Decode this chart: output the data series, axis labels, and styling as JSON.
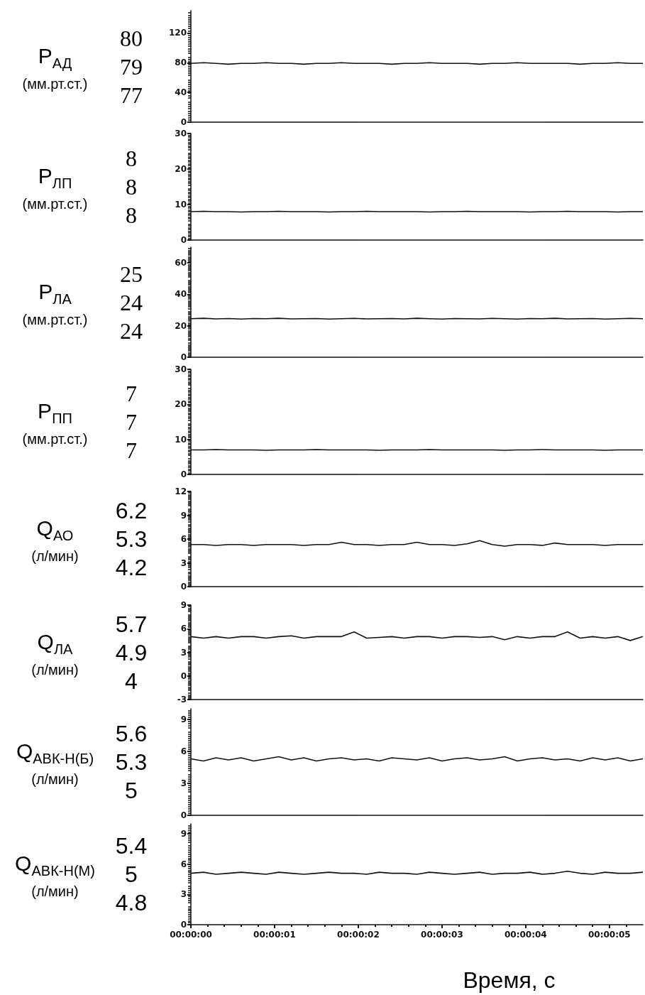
{
  "chart_data": [
    {
      "type": "line",
      "ylabel": "P$_{АД}$\n(мм.рт.ст.)",
      "annotations": [
        "80",
        "79",
        "77"
      ],
      "xlim": [
        0,
        5.4
      ],
      "ylim": [
        0,
        150
      ],
      "yticks": [
        0,
        40,
        80,
        120
      ],
      "tick_labels": "y",
      "marker": "none",
      "x": [
        0,
        0.15,
        0.3,
        0.45,
        0.6,
        0.75,
        0.9,
        1.05,
        1.2,
        1.35,
        1.5,
        1.65,
        1.8,
        1.95,
        2.1,
        2.25,
        2.4,
        2.55,
        2.7,
        2.85,
        3,
        3.15,
        3.3,
        3.45,
        3.6,
        3.75,
        3.9,
        4.05,
        4.2,
        4.35,
        4.5,
        4.65,
        4.8,
        4.95,
        5.1,
        5.25,
        5.4
      ],
      "series": [
        {
          "color": "#111111",
          "values": [
            79,
            80,
            79,
            78,
            79,
            79,
            80,
            79,
            79,
            78,
            79,
            79,
            80,
            79,
            79,
            79,
            78,
            79,
            79,
            80,
            79,
            79,
            79,
            78,
            79,
            79,
            80,
            79,
            79,
            79,
            79,
            78,
            79,
            79,
            80,
            79,
            79
          ]
        }
      ]
    },
    {
      "type": "line",
      "ylabel": "P$_{ЛП}$\n(мм.рт.ст.)",
      "annotations": [
        "8",
        "8",
        "8"
      ],
      "xlim": [
        0,
        5.4
      ],
      "ylim": [
        0,
        30
      ],
      "yticks": [
        0,
        10,
        20,
        30
      ],
      "tick_labels": "y",
      "marker": "none",
      "x": [
        0,
        0.15,
        0.3,
        0.45,
        0.6,
        0.75,
        0.9,
        1.05,
        1.2,
        1.35,
        1.5,
        1.65,
        1.8,
        1.95,
        2.1,
        2.25,
        2.4,
        2.55,
        2.7,
        2.85,
        3,
        3.15,
        3.3,
        3.45,
        3.6,
        3.75,
        3.9,
        4.05,
        4.2,
        4.35,
        4.5,
        4.65,
        4.8,
        4.95,
        5.1,
        5.25,
        5.4
      ],
      "series": [
        {
          "color": "#111111",
          "values": [
            8,
            8.1,
            8,
            8,
            7.9,
            8,
            8,
            8.1,
            8,
            8,
            8,
            7.9,
            8,
            8,
            8.1,
            8,
            8,
            8,
            8,
            7.9,
            8,
            8,
            8.1,
            8,
            8,
            8,
            8,
            7.9,
            8,
            8,
            8.1,
            8,
            8,
            8,
            7.9,
            8,
            8
          ]
        }
      ]
    },
    {
      "type": "line",
      "ylabel": "P$_{ЛА}$\n(мм.рт.ст.)",
      "annotations": [
        "25",
        "24",
        "24"
      ],
      "xlim": [
        0,
        5.4
      ],
      "ylim": [
        0,
        70
      ],
      "yticks": [
        0,
        20,
        40,
        60
      ],
      "tick_labels": "y",
      "marker": "none",
      "x": [
        0,
        0.15,
        0.3,
        0.45,
        0.6,
        0.75,
        0.9,
        1.05,
        1.2,
        1.35,
        1.5,
        1.65,
        1.8,
        1.95,
        2.1,
        2.25,
        2.4,
        2.55,
        2.7,
        2.85,
        3,
        3.15,
        3.3,
        3.45,
        3.6,
        3.75,
        3.9,
        4.05,
        4.2,
        4.35,
        4.5,
        4.65,
        4.8,
        4.95,
        5.1,
        5.25,
        5.4
      ],
      "series": [
        {
          "color": "#111111",
          "values": [
            24.5,
            24.8,
            24.4,
            24.6,
            24.3,
            24.6,
            24.5,
            24.8,
            24.4,
            24.5,
            24.6,
            24.3,
            24.5,
            24.7,
            24.4,
            24.5,
            24.6,
            24.4,
            24.8,
            24.5,
            24.3,
            24.6,
            24.5,
            24.4,
            24.7,
            24.5,
            24.3,
            24.6,
            24.5,
            24.8,
            24.4,
            24.5,
            24.6,
            24.3,
            24.5,
            24.7,
            24.5
          ]
        }
      ]
    },
    {
      "type": "line",
      "ylabel": "P$_{ПП}$\n(мм.рт.ст.)",
      "annotations": [
        "7",
        "7",
        "7"
      ],
      "xlim": [
        0,
        5.4
      ],
      "ylim": [
        0,
        30
      ],
      "yticks": [
        0,
        10,
        20,
        30
      ],
      "tick_labels": "y",
      "marker": "none",
      "x": [
        0,
        0.15,
        0.3,
        0.45,
        0.6,
        0.75,
        0.9,
        1.05,
        1.2,
        1.35,
        1.5,
        1.65,
        1.8,
        1.95,
        2.1,
        2.25,
        2.4,
        2.55,
        2.7,
        2.85,
        3,
        3.15,
        3.3,
        3.45,
        3.6,
        3.75,
        3.9,
        4.05,
        4.2,
        4.35,
        4.5,
        4.65,
        4.8,
        4.95,
        5.1,
        5.25,
        5.4
      ],
      "series": [
        {
          "color": "#111111",
          "values": [
            7,
            7,
            7.1,
            7,
            7,
            7,
            6.9,
            7,
            7,
            7,
            7.1,
            7,
            7,
            7,
            7,
            6.9,
            7,
            7,
            7,
            7.1,
            7,
            7,
            7,
            7,
            7,
            6.9,
            7,
            7,
            7.1,
            7,
            7,
            7,
            7,
            6.9,
            7,
            7,
            7
          ]
        }
      ]
    },
    {
      "type": "line",
      "ylabel": "Q$_{АО}$\n(л/мин)",
      "annotations": [
        "6.2",
        "5.3",
        "4.2"
      ],
      "xlim": [
        0,
        5.4
      ],
      "ylim": [
        0,
        12
      ],
      "yticks": [
        0,
        3,
        6,
        9,
        12
      ],
      "tick_labels": "y",
      "marker": "none",
      "x": [
        0,
        0.15,
        0.3,
        0.45,
        0.6,
        0.75,
        0.9,
        1.05,
        1.2,
        1.35,
        1.5,
        1.65,
        1.8,
        1.95,
        2.1,
        2.25,
        2.4,
        2.55,
        2.7,
        2.85,
        3,
        3.15,
        3.3,
        3.45,
        3.6,
        3.75,
        3.9,
        4.05,
        4.2,
        4.35,
        4.5,
        4.65,
        4.8,
        4.95,
        5.1,
        5.25,
        5.4
      ],
      "series": [
        {
          "color": "#111111",
          "values": [
            5.3,
            5.3,
            5.2,
            5.3,
            5.3,
            5.2,
            5.3,
            5.3,
            5.3,
            5.2,
            5.3,
            5.3,
            5.6,
            5.3,
            5.3,
            5.2,
            5.3,
            5.3,
            5.6,
            5.3,
            5.3,
            5.2,
            5.4,
            5.8,
            5.3,
            5.1,
            5.3,
            5.3,
            5.2,
            5.5,
            5.3,
            5.3,
            5.3,
            5.2,
            5.3,
            5.3,
            5.3
          ]
        }
      ]
    },
    {
      "type": "line",
      "ylabel": "Q$_{ЛА}$\n(л/мин)",
      "annotations": [
        "5.7",
        "4.9",
        "4"
      ],
      "xlim": [
        0,
        5.4
      ],
      "ylim": [
        -3,
        9
      ],
      "yticks": [
        -3,
        0,
        3,
        6,
        9
      ],
      "tick_labels": "y",
      "marker": "none",
      "x": [
        0,
        0.15,
        0.3,
        0.45,
        0.6,
        0.75,
        0.9,
        1.05,
        1.2,
        1.35,
        1.5,
        1.65,
        1.8,
        1.95,
        2.1,
        2.25,
        2.4,
        2.55,
        2.7,
        2.85,
        3,
        3.15,
        3.3,
        3.45,
        3.6,
        3.75,
        3.9,
        4.05,
        4.2,
        4.35,
        4.5,
        4.65,
        4.8,
        4.95,
        5.1,
        5.25,
        5.4
      ],
      "series": [
        {
          "color": "#111111",
          "values": [
            5,
            4.8,
            5,
            4.8,
            5,
            5,
            4.8,
            5,
            5.1,
            4.8,
            5,
            5,
            5,
            5.6,
            4.8,
            4.9,
            5,
            4.8,
            5,
            5,
            4.8,
            5,
            5,
            4.9,
            5,
            4.6,
            5,
            4.8,
            5,
            5,
            5.6,
            4.8,
            5,
            4.8,
            5,
            4.5,
            5
          ]
        }
      ]
    },
    {
      "type": "line",
      "ylabel": "Q$_{АВК-Н(Б)}$\n(л/мин)",
      "annotations": [
        "5.6",
        "5.3",
        "5"
      ],
      "xlim": [
        0,
        5.4
      ],
      "ylim": [
        0,
        10
      ],
      "yticks": [
        0,
        3,
        6,
        9
      ],
      "tick_labels": "y",
      "marker": "none",
      "x": [
        0,
        0.15,
        0.3,
        0.45,
        0.6,
        0.75,
        0.9,
        1.05,
        1.2,
        1.35,
        1.5,
        1.65,
        1.8,
        1.95,
        2.1,
        2.25,
        2.4,
        2.55,
        2.7,
        2.85,
        3,
        3.15,
        3.3,
        3.45,
        3.6,
        3.75,
        3.9,
        4.05,
        4.2,
        4.35,
        4.5,
        4.65,
        4.8,
        4.95,
        5.1,
        5.25,
        5.4
      ],
      "series": [
        {
          "color": "#111111",
          "values": [
            5.3,
            5.1,
            5.4,
            5.2,
            5.4,
            5.1,
            5.3,
            5.5,
            5.2,
            5.4,
            5.1,
            5.3,
            5.4,
            5.2,
            5.3,
            5.1,
            5.4,
            5.3,
            5.2,
            5.4,
            5.1,
            5.3,
            5.4,
            5.2,
            5.3,
            5.5,
            5.1,
            5.3,
            5.4,
            5.2,
            5.3,
            5.1,
            5.4,
            5.2,
            5.4,
            5.1,
            5.3
          ]
        }
      ]
    },
    {
      "type": "line",
      "ylabel": "Q$_{АВК-Н(М)}$\n(л/мин)",
      "annotations": [
        "5.4",
        "5",
        "4.8"
      ],
      "xlim": [
        0,
        5.4
      ],
      "ylim": [
        0,
        10
      ],
      "yticks": [
        0,
        3,
        6,
        9
      ],
      "marker": "none",
      "xlabel": "Время, с",
      "xticks": [
        {
          "value": 0,
          "label": "00:00:00"
        },
        {
          "value": 1,
          "label": "00:00:01"
        },
        {
          "value": 2,
          "label": "00:00:02"
        },
        {
          "value": 3,
          "label": "00:00:03"
        },
        {
          "value": 4,
          "label": "00:00:04"
        },
        {
          "value": 5,
          "label": "00:00:05"
        }
      ],
      "x": [
        0,
        0.15,
        0.3,
        0.45,
        0.6,
        0.75,
        0.9,
        1.05,
        1.2,
        1.35,
        1.5,
        1.65,
        1.8,
        1.95,
        2.1,
        2.25,
        2.4,
        2.55,
        2.7,
        2.85,
        3,
        3.15,
        3.3,
        3.45,
        3.6,
        3.75,
        3.9,
        4.05,
        4.2,
        4.35,
        4.5,
        4.65,
        4.8,
        4.95,
        5.1,
        5.25,
        5.4
      ],
      "series": [
        {
          "color": "#111111",
          "values": [
            5.1,
            5.2,
            5,
            5.1,
            5.2,
            5.1,
            5,
            5.2,
            5.1,
            5,
            5.1,
            5.2,
            5.1,
            5.1,
            5,
            5.2,
            5.1,
            5.1,
            5,
            5.2,
            5.1,
            5,
            5.1,
            5.2,
            5,
            5.1,
            5.1,
            5.2,
            5,
            5.1,
            5.3,
            5.1,
            5,
            5.2,
            5.1,
            5.1,
            5.2
          ]
        }
      ]
    }
  ]
}
